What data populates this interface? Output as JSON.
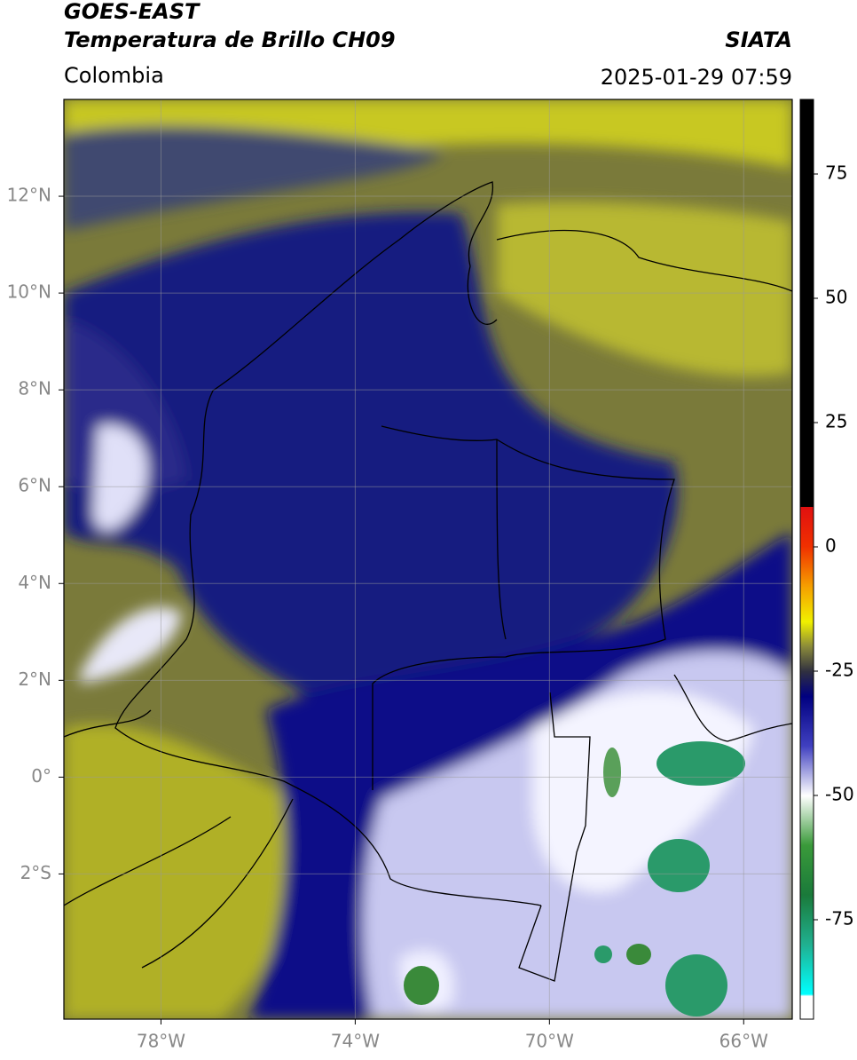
{
  "header": {
    "title": "GOES-EAST",
    "subtitle": "Temperatura de Brillo CH09",
    "region": "Colombia",
    "source": "SIATA",
    "datetime": "2025-01-29 07:59"
  },
  "map": {
    "lonlim": [
      -80,
      -65
    ],
    "latlim": [
      -5,
      14
    ],
    "lonticks": [
      {
        "value": -78,
        "label": "78°W"
      },
      {
        "value": -74,
        "label": "74°W"
      },
      {
        "value": -70,
        "label": "70°W"
      },
      {
        "value": -66,
        "label": "66°W"
      }
    ],
    "latticks": [
      {
        "value": 12,
        "label": "12°N"
      },
      {
        "value": 10,
        "label": "10°N"
      },
      {
        "value": 8,
        "label": "8°N"
      },
      {
        "value": 6,
        "label": "6°N"
      },
      {
        "value": 4,
        "label": "4°N"
      },
      {
        "value": 2,
        "label": "2°N"
      },
      {
        "value": 0,
        "label": "0°"
      },
      {
        "value": -2,
        "label": "2°S"
      }
    ]
  },
  "colorbar": {
    "clim": [
      -95,
      90
    ],
    "ticks": [
      75,
      50,
      25,
      0,
      -25,
      -50,
      -75
    ]
  }
}
